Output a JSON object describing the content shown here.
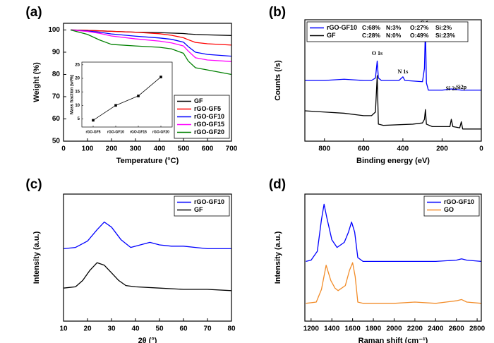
{
  "chart_data": [
    {
      "type": "line",
      "panel_label": "(a)",
      "xlabel": "Temperature (°C)",
      "ylabel": "Weight (%)",
      "xlim": [
        0,
        700
      ],
      "xticks": [
        0,
        100,
        200,
        300,
        400,
        500,
        600,
        700
      ],
      "ylim": [
        50,
        103
      ],
      "yticks": [
        50,
        60,
        70,
        80,
        90,
        100
      ],
      "legend": "lower right",
      "series": [
        {
          "name": "GF",
          "color": "#000000",
          "x": [
            30,
            100,
            150,
            200,
            300,
            400,
            450,
            500,
            520,
            550,
            600,
            700
          ],
          "values": [
            100,
            99.8,
            99.6,
            99.4,
            99,
            98.8,
            98.6,
            98.4,
            98.2,
            98,
            97.8,
            97.5
          ]
        },
        {
          "name": "rGO-GF5",
          "color": "#ff0000",
          "x": [
            30,
            100,
            150,
            200,
            300,
            400,
            450,
            500,
            520,
            550,
            600,
            700
          ],
          "values": [
            100,
            99.8,
            99.6,
            99.4,
            99,
            98.3,
            97.6,
            96.5,
            95.6,
            94.4,
            93.8,
            93.2
          ]
        },
        {
          "name": "rGO-GF10",
          "color": "#0000ff",
          "x": [
            30,
            100,
            150,
            200,
            300,
            400,
            450,
            500,
            520,
            550,
            600,
            700
          ],
          "values": [
            100,
            99.5,
            99,
            98.2,
            97.2,
            96.4,
            95.8,
            94.5,
            92.5,
            90,
            89,
            88.2
          ]
        },
        {
          "name": "rGO-GF15",
          "color": "#ff00ff",
          "x": [
            30,
            100,
            150,
            200,
            300,
            400,
            450,
            500,
            520,
            550,
            600,
            700
          ],
          "values": [
            100,
            99.3,
            98.5,
            97.3,
            96,
            95,
            94.2,
            92.8,
            90.5,
            87.5,
            86.5,
            85.8
          ]
        },
        {
          "name": "rGO-GF20",
          "color": "#008000",
          "x": [
            30,
            100,
            150,
            200,
            300,
            400,
            450,
            500,
            520,
            550,
            600,
            700
          ],
          "values": [
            100,
            98,
            95.5,
            93.5,
            92.8,
            92.2,
            91.5,
            89.5,
            86,
            83,
            82,
            80
          ]
        }
      ]
    },
    {
      "type": "line",
      "ylabel": "Mass fraction (wt%)",
      "markers": true,
      "categories": [
        "rGO-GF5",
        "rGO-GF10",
        "rGO-GF15",
        "rGO-GF20"
      ],
      "ylim": [
        2,
        26
      ],
      "yticks": [
        5,
        10,
        15,
        20,
        25
      ],
      "series": [
        {
          "color": "#000000",
          "values": [
            4.5,
            10,
            13.5,
            20.5
          ]
        }
      ]
    },
    {
      "type": "line",
      "panel_label": "(b)",
      "xlabel": "Binding energy (eV)",
      "ylabel": "Counts (/s)",
      "xlim": [
        900,
        0
      ],
      "xticks": [
        800,
        600,
        400,
        200,
        0
      ],
      "ylim": [
        0,
        100
      ],
      "legend": "upper left",
      "annotations": [
        "O 1s",
        "N 1s",
        "C 1s",
        "Si 2s",
        "Si2p"
      ],
      "series": [
        {
          "name": "rGO-GF10",
          "color": "#0000ff",
          "composition": [
            "C:68%",
            "N:3%",
            "O:27%",
            "Si:2%"
          ],
          "x": [
            900,
            800,
            700,
            600,
            560,
            540,
            531,
            525,
            510,
            420,
            400,
            390,
            300,
            290,
            285,
            280,
            270,
            200,
            150,
            100,
            0
          ],
          "values": [
            50,
            50,
            51,
            50,
            50,
            52,
            66,
            52,
            50,
            50,
            53,
            50,
            49,
            60,
            94,
            48,
            42,
            42,
            43,
            42,
            42
          ]
        },
        {
          "name": "GF",
          "color": "#000000",
          "composition": [
            "C:28%",
            "N:0%",
            "O:49%",
            "Si:23%"
          ],
          "x": [
            900,
            800,
            700,
            600,
            560,
            540,
            531,
            525,
            500,
            350,
            300,
            290,
            285,
            280,
            250,
            160,
            153,
            145,
            110,
            102,
            95,
            0
          ],
          "values": [
            25,
            24,
            23,
            21,
            21,
            24,
            54,
            14,
            13,
            14,
            15,
            18,
            26,
            14,
            12,
            12,
            18,
            12,
            11,
            16,
            10,
            10
          ]
        }
      ]
    },
    {
      "type": "line",
      "panel_label": "(c)",
      "xlabel": "2θ (°)",
      "ylabel": "Intensity (a.u.)",
      "xlim": [
        10,
        80
      ],
      "xticks": [
        10,
        20,
        30,
        40,
        50,
        60,
        70,
        80
      ],
      "ylim": [
        0,
        100
      ],
      "legend": "upper right",
      "series": [
        {
          "name": "rGO-GF10",
          "color": "#0000ff",
          "x": [
            10,
            15,
            20,
            24,
            27,
            30,
            34,
            38,
            42,
            46,
            50,
            55,
            60,
            65,
            70,
            75,
            80
          ],
          "values": [
            57,
            58,
            63,
            72,
            78,
            74,
            64,
            58,
            60,
            62,
            60,
            59,
            59,
            58,
            57,
            57,
            57
          ]
        },
        {
          "name": "GF",
          "color": "#000000",
          "x": [
            10,
            15,
            18,
            21,
            24,
            27,
            30,
            33,
            36,
            40,
            50,
            60,
            70,
            80
          ],
          "values": [
            26,
            27,
            32,
            40,
            46,
            44,
            38,
            32,
            28,
            27,
            26,
            25,
            25,
            24
          ]
        }
      ]
    },
    {
      "type": "line",
      "panel_label": "(d)",
      "xlabel": "Raman shift (cm⁻¹)",
      "ylabel": "Intensity (a.u.)",
      "xlim": [
        1140,
        2840
      ],
      "xticks": [
        1200,
        1400,
        1600,
        1800,
        2000,
        2200,
        2400,
        2600,
        2800
      ],
      "ylim": [
        0,
        100
      ],
      "legend": "upper right",
      "series": [
        {
          "name": "rGO-GF10",
          "color": "#0000ff",
          "x": [
            1150,
            1200,
            1260,
            1300,
            1325,
            1350,
            1400,
            1450,
            1520,
            1560,
            1590,
            1620,
            1650,
            1700,
            2000,
            2400,
            2600,
            2650,
            2700,
            2840
          ],
          "values": [
            47,
            48,
            55,
            80,
            92,
            82,
            64,
            58,
            62,
            70,
            78,
            70,
            50,
            47,
            47,
            47,
            48,
            49,
            48,
            47
          ]
        },
        {
          "name": "GO",
          "color": "#f28c28",
          "x": [
            1150,
            1250,
            1300,
            1345,
            1390,
            1430,
            1460,
            1530,
            1570,
            1600,
            1625,
            1650,
            1700,
            2000,
            2200,
            2400,
            2600,
            2650,
            2700,
            2840
          ],
          "values": [
            14,
            15,
            25,
            44,
            32,
            26,
            24,
            28,
            40,
            46,
            35,
            15,
            14,
            14,
            15,
            14,
            16,
            17,
            15,
            14
          ]
        }
      ]
    }
  ]
}
